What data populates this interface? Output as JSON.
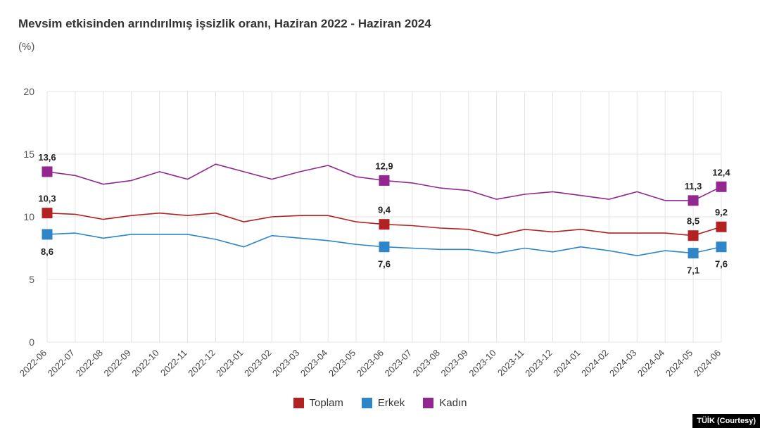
{
  "title": "Mevsim etkisinden arındırılmış işsizlik oranı, Haziran 2022 - Haziran 2024",
  "unit": "(%)",
  "credit": "TÜİK (Courtesy)",
  "chart_data": {
    "type": "line",
    "title": "Mevsim etkisinden arındırılmış işsizlik oranı, Haziran 2022 - Haziran 2024",
    "ylabel": "(%)",
    "ylim": [
      0,
      20
    ],
    "yticks": [
      "0",
      "5",
      "10",
      "15",
      "20"
    ],
    "grid": true,
    "legend": "bottom",
    "categories": [
      "2022-06",
      "2022-07",
      "2022-08",
      "2022-09",
      "2022-10",
      "2022-11",
      "2022-12",
      "2023-01",
      "2023-02",
      "2023-03",
      "2023-04",
      "2023-05",
      "2023-06",
      "2023-07",
      "2023-08",
      "2023-09",
      "2023-10",
      "2023-11",
      "2023-12",
      "2024-01",
      "2024-02",
      "2024-03",
      "2024-04",
      "2024-05",
      "2024-06"
    ],
    "series": [
      {
        "name": "Toplam",
        "color": "#b22222",
        "values": [
          10.3,
          10.2,
          9.8,
          10.1,
          10.3,
          10.1,
          10.3,
          9.6,
          10.0,
          10.1,
          10.1,
          9.6,
          9.4,
          9.3,
          9.1,
          9.0,
          8.5,
          9.0,
          8.8,
          9.0,
          8.7,
          8.7,
          8.7,
          8.5,
          9.2
        ],
        "markers": [
          {
            "index": 0,
            "label": "10,3",
            "pos": "above"
          },
          {
            "index": 12,
            "label": "9,4",
            "pos": "above"
          },
          {
            "index": 23,
            "label": "8,5",
            "pos": "above"
          },
          {
            "index": 24,
            "label": "9,2",
            "pos": "above"
          }
        ]
      },
      {
        "name": "Erkek",
        "color": "#2e86c8",
        "values": [
          8.6,
          8.7,
          8.3,
          8.6,
          8.6,
          8.6,
          8.2,
          7.6,
          8.5,
          8.3,
          8.1,
          7.8,
          7.6,
          7.5,
          7.4,
          7.4,
          7.1,
          7.5,
          7.2,
          7.6,
          7.3,
          6.9,
          7.3,
          7.1,
          7.6
        ],
        "markers": [
          {
            "index": 0,
            "label": "8,6",
            "pos": "below"
          },
          {
            "index": 12,
            "label": "7,6",
            "pos": "below"
          },
          {
            "index": 23,
            "label": "7,1",
            "pos": "below"
          },
          {
            "index": 24,
            "label": "7,6",
            "pos": "below"
          }
        ]
      },
      {
        "name": "Kadın",
        "color": "#92278f",
        "values": [
          13.6,
          13.3,
          12.6,
          12.9,
          13.6,
          13.0,
          14.2,
          13.6,
          13.0,
          13.6,
          14.1,
          13.2,
          12.9,
          12.7,
          12.3,
          12.1,
          11.4,
          11.8,
          12.0,
          11.7,
          11.4,
          12.0,
          11.3,
          11.3,
          12.4
        ],
        "markers": [
          {
            "index": 0,
            "label": "13,6",
            "pos": "above"
          },
          {
            "index": 12,
            "label": "12,9",
            "pos": "above"
          },
          {
            "index": 23,
            "label": "11,3",
            "pos": "above"
          },
          {
            "index": 24,
            "label": "12,4",
            "pos": "above"
          }
        ]
      }
    ]
  }
}
